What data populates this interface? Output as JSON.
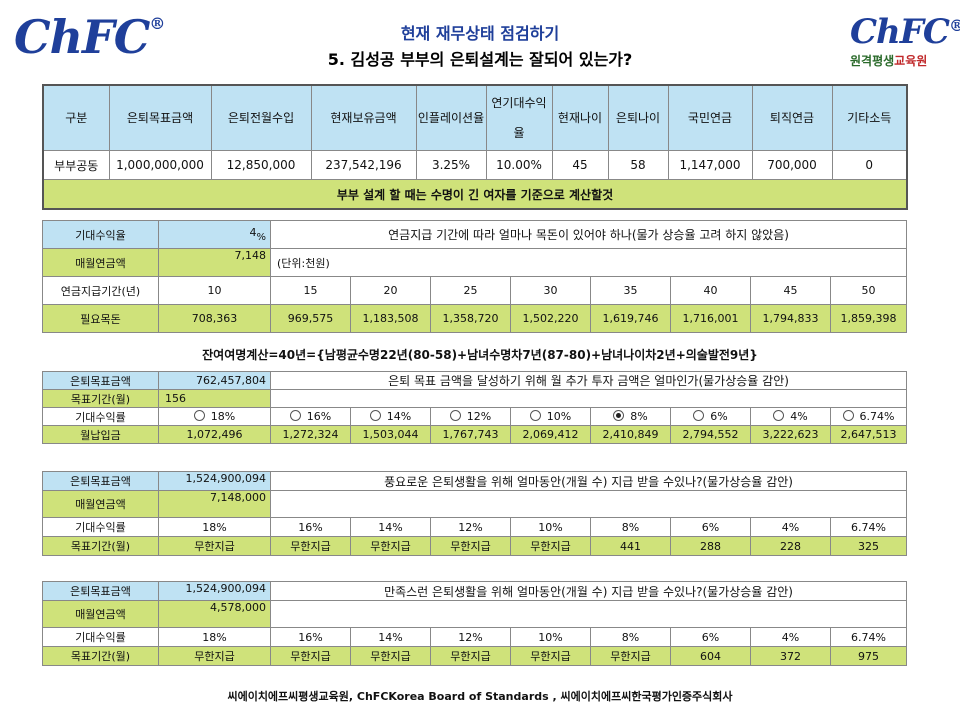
{
  "logo": {
    "text": "ChFC",
    "reg": "®",
    "sub_green": "원격평생",
    "sub_red": "교육원"
  },
  "title": {
    "line1": "현재 재무상태 점검하기",
    "line2": "5. 김성공 부부의 은퇴설계는 잘되어 있는가?"
  },
  "summary": {
    "headers": [
      "구분",
      "은퇴목표금액",
      "은퇴전월수입",
      "현재보유금액",
      "인플레이션율",
      "연기대수익율",
      "현재나이",
      "은퇴나이",
      "국민연금",
      "퇴직연금",
      "기타소득"
    ],
    "row": [
      "부부공동",
      "1,000,000,000",
      "12,850,000",
      "237,542,196",
      "3.25%",
      "10.00%",
      "45",
      "58",
      "1,147,000",
      "700,000",
      "0"
    ],
    "note": "부부 설계 할 때는 수명이 긴 여자를 기준으로 계산할것"
  },
  "pension": {
    "expected_label": "기대수익율",
    "expected_value": "4",
    "expected_unit": "%",
    "question": "연금지급 기간에 따라 얼마나 목돈이 있어야 하나(물가 상승율 고려 하지 않았음)",
    "monthly_label": "매월연금액",
    "monthly_value": "7,148",
    "unit_note": "(단위:천원)",
    "period_label": "연금지급기간(년)",
    "periods": [
      "10",
      "15",
      "20",
      "25",
      "30",
      "35",
      "40",
      "45",
      "50"
    ],
    "needed_label": "필요목돈",
    "needed": [
      "708,363",
      "969,575",
      "1,183,508",
      "1,358,720",
      "1,502,220",
      "1,619,746",
      "1,716,001",
      "1,794,833",
      "1,859,398"
    ]
  },
  "life_calc": "잔여여명계산=40년={남평균수명22년(80-58)+남녀수명차7년(87-80)+남녀나이차2년+의술발전9년}",
  "invest": {
    "target_label": "은퇴목표금액",
    "target_value": "762,457,804",
    "question": "은퇴 목표 금액을 달성하기 위해 월 추가 투자 금액은 얼마인가(물가상승율 감안)",
    "period_label": "목표기간(월)",
    "period_value": "156",
    "rate_label": "기대수익률",
    "rates": [
      "18%",
      "16%",
      "14%",
      "12%",
      "10%",
      "8%",
      "6%",
      "4%",
      "6.74%"
    ],
    "selected_index": 5,
    "pay_label": "월납입금",
    "payments": [
      "1,072,496",
      "1,272,324",
      "1,503,044",
      "1,767,743",
      "2,069,412",
      "2,410,849",
      "2,794,552",
      "3,222,623",
      "2,647,513"
    ]
  },
  "rich": {
    "target_label": "은퇴목표금액",
    "target_value": "1,524,900,094",
    "question": "풍요로운 은퇴생활을 위해 얼마동안(개월 수) 지급 받을 수있나?(물가상승율 감안)",
    "monthly_label": "매월연금액",
    "monthly_value": "7,148,000",
    "rate_label": "기대수익률",
    "rates": [
      "18%",
      "16%",
      "14%",
      "12%",
      "10%",
      "8%",
      "6%",
      "4%",
      "6.74%"
    ],
    "period_label": "목표기간(월)",
    "periods": [
      "무한지급",
      "무한지급",
      "무한지급",
      "무한지급",
      "무한지급",
      "441",
      "288",
      "228",
      "325"
    ]
  },
  "content": {
    "target_label": "은퇴목표금액",
    "target_value": "1,524,900,094",
    "question": "만족스런 은퇴생활을 위해 얼마동안(개월 수) 지급 받을 수있나?(물가상승율 감안)",
    "monthly_label": "매월연금액",
    "monthly_value": "4,578,000",
    "rate_label": "기대수익률",
    "rates": [
      "18%",
      "16%",
      "14%",
      "12%",
      "10%",
      "8%",
      "6%",
      "4%",
      "6.74%"
    ],
    "period_label": "목표기간(월)",
    "periods": [
      "무한지급",
      "무한지급",
      "무한지급",
      "무한지급",
      "무한지급",
      "무한지급",
      "604",
      "372",
      "975"
    ]
  },
  "footer": "씨에이치에프씨평생교육원, ChFCKorea Board of Standards , 씨에이치에프씨한국평가인증주식회사",
  "colors": {
    "header_blue": "#bfe2f3",
    "highlight_green": "#cfe27a",
    "logo_blue": "#1f3f9a"
  }
}
